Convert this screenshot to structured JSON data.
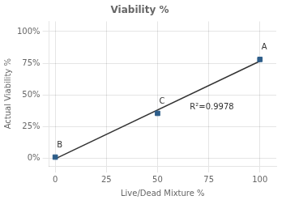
{
  "chart_data": {
    "type": "scatter",
    "title": "Viability %",
    "xlabel": "Live/Dead Mixture %",
    "ylabel": "Actual Viability %",
    "series": [
      {
        "type": "scatter",
        "marker": "square",
        "color": "#2E5E8A",
        "x": [
          0,
          50,
          100
        ],
        "values": [
          0.01,
          0.355,
          0.78
        ],
        "yerr": [
          0.007,
          0.012,
          0.006
        ]
      },
      {
        "type": "line",
        "line_style": "solid",
        "color": "#333333",
        "x": [
          0,
          100
        ],
        "values": [
          -0.0033333,
          0.7666667
        ]
      }
    ],
    "annotations": [
      {
        "text": "B",
        "x": 0,
        "y": 0.01
      },
      {
        "text": "C",
        "x": 50,
        "y": 0.355
      },
      {
        "text": "A",
        "x": 100,
        "y": 0.78
      },
      {
        "text": "R²=0.9978",
        "x": 65,
        "y": 0.31
      }
    ],
    "xlim": [
      -3,
      108
    ],
    "ylim": [
      -0.06,
      1.08
    ],
    "xticks": [
      0,
      25,
      50,
      75,
      100
    ],
    "yticks": [
      {
        "value": 0.0,
        "label": "0%"
      },
      {
        "value": 0.25,
        "label": "25%"
      },
      {
        "value": 0.5,
        "label": "50%"
      },
      {
        "value": 0.75,
        "label": "75%"
      },
      {
        "value": 1.0,
        "label": "100%"
      }
    ],
    "grid": true
  }
}
